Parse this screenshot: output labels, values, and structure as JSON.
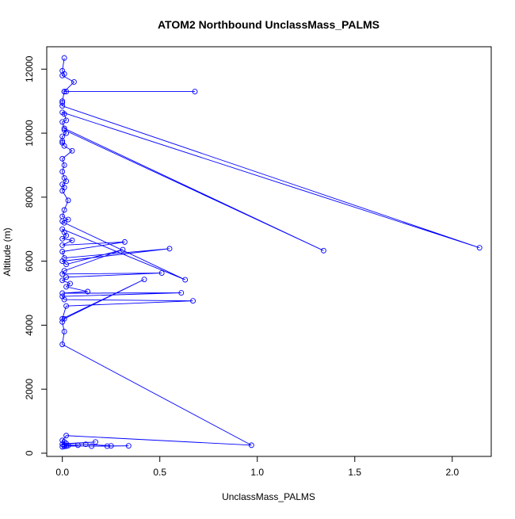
{
  "chart_data": {
    "type": "line",
    "title": "ATOM2 Northbound UnclassMass_PALMS",
    "xlabel": "UnclassMass_PALMS",
    "ylabel": "Altitude (m)",
    "xlim": [
      -0.08,
      2.2
    ],
    "ylim": [
      -100,
      12700
    ],
    "x_ticks": [
      0.0,
      0.5,
      1.0,
      1.5,
      2.0
    ],
    "x_tick_labels": [
      "0.0",
      "0.5",
      "1.0",
      "1.5",
      "2.0"
    ],
    "y_ticks": [
      0,
      2000,
      4000,
      6000,
      8000,
      10000,
      12000
    ],
    "y_tick_labels": [
      "0",
      "2000",
      "4000",
      "6000",
      "8000",
      "10000",
      "12000"
    ],
    "grid": false,
    "legend": "none",
    "marker": "open-circle",
    "color": "#0000ff",
    "series": [
      {
        "points": [
          [
            0.01,
            12350
          ],
          [
            0.0,
            11950
          ],
          [
            0.01,
            11850
          ],
          [
            0.0,
            11800
          ],
          [
            0.06,
            11600
          ],
          [
            0.01,
            11300
          ],
          [
            0.02,
            11300
          ],
          [
            0.68,
            11300
          ],
          [
            0.01,
            11300
          ],
          [
            0.0,
            11000
          ],
          [
            0.0,
            10950
          ],
          [
            0.0,
            10850
          ],
          [
            2.14,
            6420
          ],
          [
            0.0,
            10650
          ],
          [
            0.01,
            10600
          ],
          [
            0.02,
            10400
          ],
          [
            0.0,
            10350
          ],
          [
            0.01,
            10150
          ],
          [
            1.34,
            6330
          ],
          [
            0.01,
            10100
          ],
          [
            0.02,
            10000
          ],
          [
            0.0,
            9900
          ],
          [
            0.0,
            9750
          ],
          [
            0.0,
            9700
          ],
          [
            0.01,
            9600
          ],
          [
            0.05,
            9450
          ],
          [
            0.0,
            9200
          ],
          [
            0.01,
            9000
          ],
          [
            0.0,
            8800
          ],
          [
            0.01,
            8600
          ],
          [
            0.02,
            8500
          ],
          [
            0.0,
            8400
          ],
          [
            0.01,
            8300
          ],
          [
            0.0,
            8200
          ],
          [
            0.03,
            7900
          ],
          [
            0.01,
            7600
          ],
          [
            0.0,
            7400
          ],
          [
            0.03,
            7300
          ],
          [
            0.0,
            7250
          ],
          [
            0.01,
            7200
          ],
          [
            0.63,
            5420
          ],
          [
            0.0,
            7000
          ],
          [
            0.01,
            6900
          ],
          [
            0.02,
            6800
          ],
          [
            0.0,
            6700
          ],
          [
            0.05,
            6650
          ],
          [
            0.0,
            6500
          ],
          [
            0.32,
            6600
          ],
          [
            0.0,
            6300
          ],
          [
            0.01,
            6100
          ],
          [
            0.55,
            6390
          ],
          [
            0.0,
            6000
          ],
          [
            0.02,
            5900
          ],
          [
            0.31,
            6360
          ],
          [
            0.01,
            5700
          ],
          [
            0.0,
            5600
          ],
          [
            0.51,
            5630
          ],
          [
            0.02,
            5500
          ],
          [
            0.0,
            5400
          ],
          [
            0.04,
            5300
          ],
          [
            0.02,
            5200
          ],
          [
            0.13,
            5050
          ],
          [
            0.0,
            5000
          ],
          [
            0.61,
            5010
          ],
          [
            0.0,
            4900
          ],
          [
            0.01,
            4800
          ],
          [
            0.67,
            4760
          ],
          [
            0.02,
            4600
          ],
          [
            0.0,
            4200
          ],
          [
            0.42,
            5430
          ],
          [
            0.01,
            4200
          ],
          [
            0.0,
            4100
          ],
          [
            0.01,
            3800
          ],
          [
            0.0,
            3400
          ],
          [
            0.97,
            250
          ],
          [
            0.02,
            550
          ],
          [
            0.0,
            400
          ],
          [
            0.01,
            350
          ],
          [
            0.02,
            300
          ],
          [
            0.17,
            350
          ],
          [
            0.0,
            280
          ],
          [
            0.01,
            250
          ],
          [
            0.08,
            250
          ],
          [
            0.03,
            240
          ],
          [
            0.12,
            280
          ],
          [
            0.25,
            230
          ],
          [
            0.15,
            220
          ],
          [
            0.23,
            220
          ],
          [
            0.34,
            230
          ],
          [
            0.02,
            220
          ],
          [
            0.01,
            210
          ],
          [
            0.0,
            200
          ]
        ]
      }
    ]
  }
}
